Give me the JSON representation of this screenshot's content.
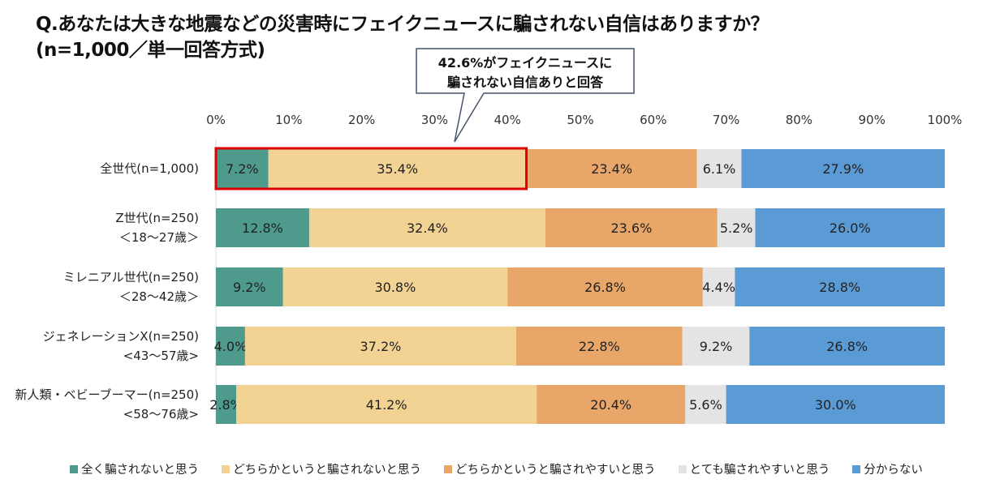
{
  "title_line1": "Q.あなたは大きな地震などの災害時にフェイクニュースに騙されない自信はありますか？",
  "title_line2": "(n=1,000／単一回答方式)",
  "callout": {
    "line1": "42.6%がフェイクニュースに",
    "line2": "騙されない自信ありと回答"
  },
  "chart_data": {
    "type": "bar",
    "orientation": "horizontal",
    "stacked": true,
    "percent": true,
    "xlim": [
      0,
      100
    ],
    "x_ticks": [
      "0%",
      "10%",
      "20%",
      "30%",
      "40%",
      "50%",
      "60%",
      "70%",
      "80%",
      "90%",
      "100%"
    ],
    "x_axis_position": "top",
    "grid": false,
    "legend_position": "bottom",
    "categories": [
      [
        "全世代(n=1,000)"
      ],
      [
        "Z世代(n=250)",
        "＜18～27歳＞"
      ],
      [
        "ミレニアル世代(n=250)",
        "＜28～42歳＞"
      ],
      [
        "ジェネレーションX(n=250)",
        "<43～57歳>"
      ],
      [
        "新人類・ベビーブーマー(n=250)",
        "<58～76歳>"
      ]
    ],
    "series": [
      {
        "name": "全く騙されないと思う",
        "color": "#4E9A8C",
        "values": [
          7.2,
          12.8,
          9.2,
          4.0,
          2.8
        ]
      },
      {
        "name": "どちらかというと騙されないと思う",
        "color": "#F2D394",
        "values": [
          35.4,
          32.4,
          30.8,
          37.2,
          41.2
        ]
      },
      {
        "name": "どちらかというと騙されやすいと思う",
        "color": "#E9A669",
        "values": [
          23.4,
          23.6,
          26.8,
          22.8,
          20.4
        ]
      },
      {
        "name": "とても騙されやすいと思う",
        "color": "#E4E4E4",
        "values": [
          6.1,
          5.2,
          4.4,
          9.2,
          5.6
        ]
      },
      {
        "name": "分からない",
        "color": "#5B9BD5",
        "values": [
          27.9,
          26.0,
          28.8,
          26.8,
          30.0
        ]
      }
    ],
    "data_labels": [
      [
        "7.2%",
        "35.4%",
        "23.4%",
        "6.1%",
        "27.9%"
      ],
      [
        "12.8%",
        "32.4%",
        "23.6%",
        "5.2%",
        "26.0%"
      ],
      [
        "9.2%",
        "30.8%",
        "26.8%",
        "4.4%",
        "28.8%"
      ],
      [
        "4.0%",
        "37.2%",
        "22.8%",
        "9.2%",
        "26.8%"
      ],
      [
        "2.8%",
        "41.2%",
        "20.4%",
        "5.6%",
        "30.0%"
      ]
    ],
    "highlight": {
      "row": 0,
      "series": [
        0,
        1
      ],
      "color": "#E00000"
    }
  }
}
